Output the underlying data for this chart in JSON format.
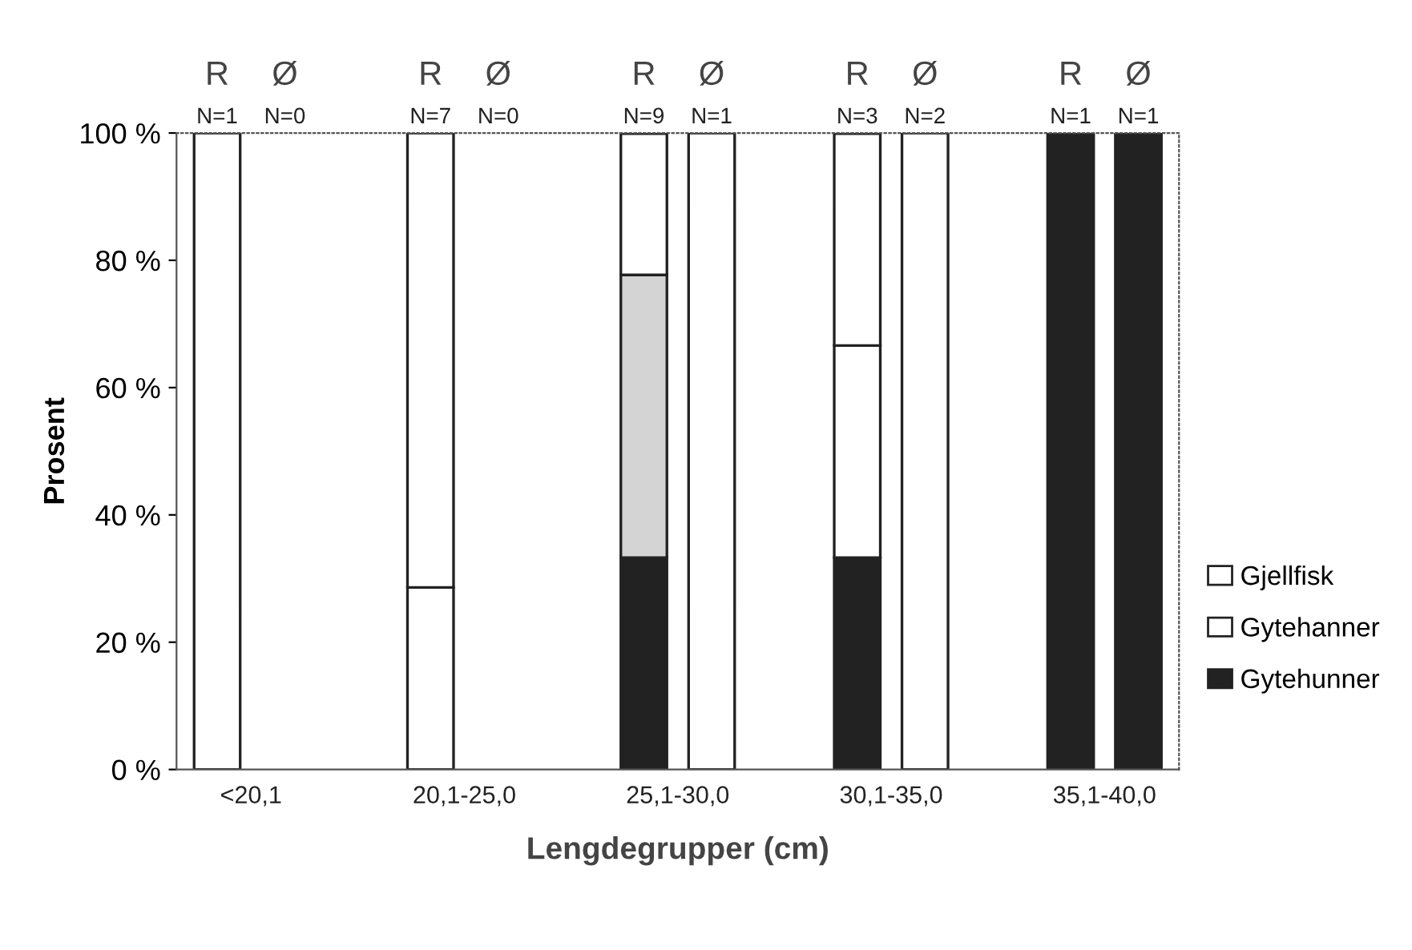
{
  "chart_data": {
    "type": "bar",
    "stacked": true,
    "xlabel": "Lengdegrupper (cm)",
    "ylabel": "Prosent",
    "categories": [
      "R\nN=1",
      "Ø\nN=0",
      "R\nN=7",
      "Ø\nN=0",
      "R\nN=9",
      "Ø\nN=1",
      "R\nN=3",
      "Ø\nN=2",
      "R\nN=1",
      "Ø\nN=1"
    ],
    "annotations": [
      "<20,1",
      "20,1-25,0",
      "25,1-30,0",
      "30,1-35,0",
      "35,1-40,0"
    ],
    "series": [
      {
        "name": "Gytehunner",
        "color": "#222222",
        "values": [
          null,
          null,
          null,
          null,
          33.3,
          null,
          33.3,
          null,
          100,
          100
        ]
      },
      {
        "name": "Gytehanner",
        "color": "#ffffff",
        "colors": [
          "#ffffff",
          "#ffffff",
          "#ffffff",
          "#ffffff",
          "#d4d4d4",
          "#ffffff",
          "#ffffff",
          "#ffffff",
          "#ffffff",
          "#ffffff"
        ],
        "values": [
          null,
          null,
          28.6,
          null,
          44.4,
          null,
          33.3,
          null,
          null,
          null
        ]
      },
      {
        "name": "Gjellfisk",
        "color": "#ffffff",
        "values": [
          100,
          null,
          71.4,
          null,
          22.2,
          100,
          33.3,
          100,
          null,
          null
        ]
      }
    ],
    "ylim": [
      0,
      100
    ],
    "yticks": [
      {
        "value": 0,
        "label": "0 %"
      },
      {
        "value": 20,
        "label": "20 %"
      },
      {
        "value": 40,
        "label": "40 %"
      },
      {
        "value": 60,
        "label": "60 %"
      },
      {
        "value": 80,
        "label": "80 %"
      },
      {
        "value": 100,
        "label": "100 %"
      }
    ],
    "legend": "right"
  }
}
